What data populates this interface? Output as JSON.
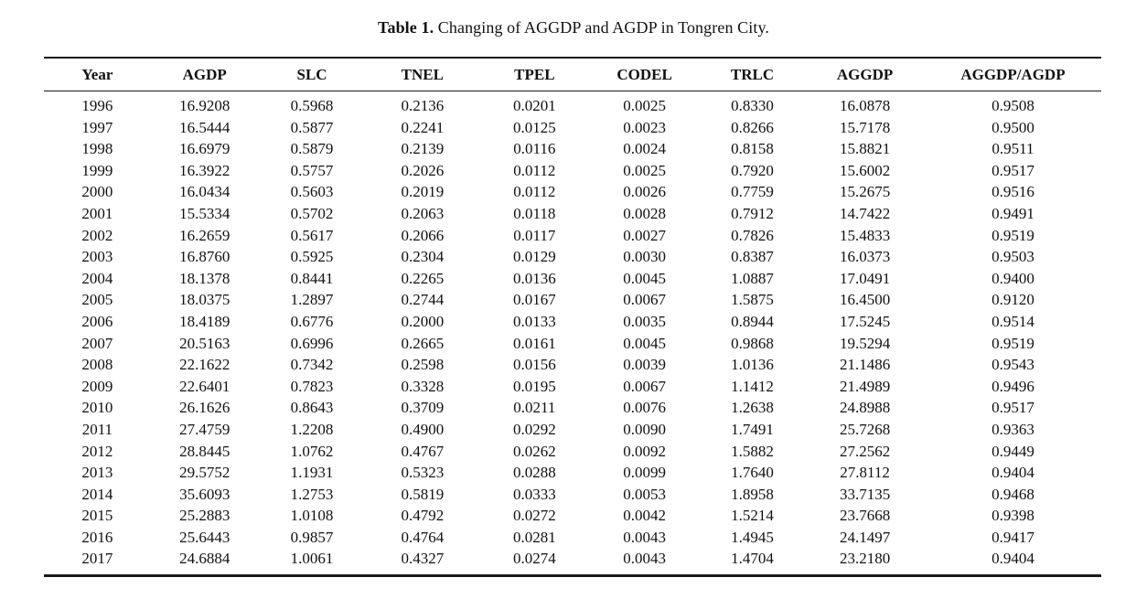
{
  "table": {
    "caption_label": "Table 1.",
    "caption_text": " Changing of AGGDP and AGDP in Tongren City.",
    "columns": [
      "Year",
      "AGDP",
      "SLC",
      "TNEL",
      "TPEL",
      "CODEL",
      "TRLC",
      "AGGDP",
      "AGGDP/AGDP"
    ],
    "rows": [
      [
        "1996",
        "16.9208",
        "0.5968",
        "0.2136",
        "0.0201",
        "0.0025",
        "0.8330",
        "16.0878",
        "0.9508"
      ],
      [
        "1997",
        "16.5444",
        "0.5877",
        "0.2241",
        "0.0125",
        "0.0023",
        "0.8266",
        "15.7178",
        "0.9500"
      ],
      [
        "1998",
        "16.6979",
        "0.5879",
        "0.2139",
        "0.0116",
        "0.0024",
        "0.8158",
        "15.8821",
        "0.9511"
      ],
      [
        "1999",
        "16.3922",
        "0.5757",
        "0.2026",
        "0.0112",
        "0.0025",
        "0.7920",
        "15.6002",
        "0.9517"
      ],
      [
        "2000",
        "16.0434",
        "0.5603",
        "0.2019",
        "0.0112",
        "0.0026",
        "0.7759",
        "15.2675",
        "0.9516"
      ],
      [
        "2001",
        "15.5334",
        "0.5702",
        "0.2063",
        "0.0118",
        "0.0028",
        "0.7912",
        "14.7422",
        "0.9491"
      ],
      [
        "2002",
        "16.2659",
        "0.5617",
        "0.2066",
        "0.0117",
        "0.0027",
        "0.7826",
        "15.4833",
        "0.9519"
      ],
      [
        "2003",
        "16.8760",
        "0.5925",
        "0.2304",
        "0.0129",
        "0.0030",
        "0.8387",
        "16.0373",
        "0.9503"
      ],
      [
        "2004",
        "18.1378",
        "0.8441",
        "0.2265",
        "0.0136",
        "0.0045",
        "1.0887",
        "17.0491",
        "0.9400"
      ],
      [
        "2005",
        "18.0375",
        "1.2897",
        "0.2744",
        "0.0167",
        "0.0067",
        "1.5875",
        "16.4500",
        "0.9120"
      ],
      [
        "2006",
        "18.4189",
        "0.6776",
        "0.2000",
        "0.0133",
        "0.0035",
        "0.8944",
        "17.5245",
        "0.9514"
      ],
      [
        "2007",
        "20.5163",
        "0.6996",
        "0.2665",
        "0.0161",
        "0.0045",
        "0.9868",
        "19.5294",
        "0.9519"
      ],
      [
        "2008",
        "22.1622",
        "0.7342",
        "0.2598",
        "0.0156",
        "0.0039",
        "1.0136",
        "21.1486",
        "0.9543"
      ],
      [
        "2009",
        "22.6401",
        "0.7823",
        "0.3328",
        "0.0195",
        "0.0067",
        "1.1412",
        "21.4989",
        "0.9496"
      ],
      [
        "2010",
        "26.1626",
        "0.8643",
        "0.3709",
        "0.0211",
        "0.0076",
        "1.2638",
        "24.8988",
        "0.9517"
      ],
      [
        "2011",
        "27.4759",
        "1.2208",
        "0.4900",
        "0.0292",
        "0.0090",
        "1.7491",
        "25.7268",
        "0.9363"
      ],
      [
        "2012",
        "28.8445",
        "1.0762",
        "0.4767",
        "0.0262",
        "0.0092",
        "1.5882",
        "27.2562",
        "0.9449"
      ],
      [
        "2013",
        "29.5752",
        "1.1931",
        "0.5323",
        "0.0288",
        "0.0099",
        "1.7640",
        "27.8112",
        "0.9404"
      ],
      [
        "2014",
        "35.6093",
        "1.2753",
        "0.5819",
        "0.0333",
        "0.0053",
        "1.8958",
        "33.7135",
        "0.9468"
      ],
      [
        "2015",
        "25.2883",
        "1.0108",
        "0.4792",
        "0.0272",
        "0.0042",
        "1.5214",
        "23.7668",
        "0.9398"
      ],
      [
        "2016",
        "25.6443",
        "0.9857",
        "0.4764",
        "0.0281",
        "0.0043",
        "1.4945",
        "24.1497",
        "0.9417"
      ],
      [
        "2017",
        "24.6884",
        "1.0061",
        "0.4327",
        "0.0274",
        "0.0043",
        "1.4704",
        "23.2180",
        "0.9404"
      ]
    ]
  },
  "colors": {
    "text": "#111111",
    "rule": "#1a1a1a",
    "background": "#ffffff"
  }
}
